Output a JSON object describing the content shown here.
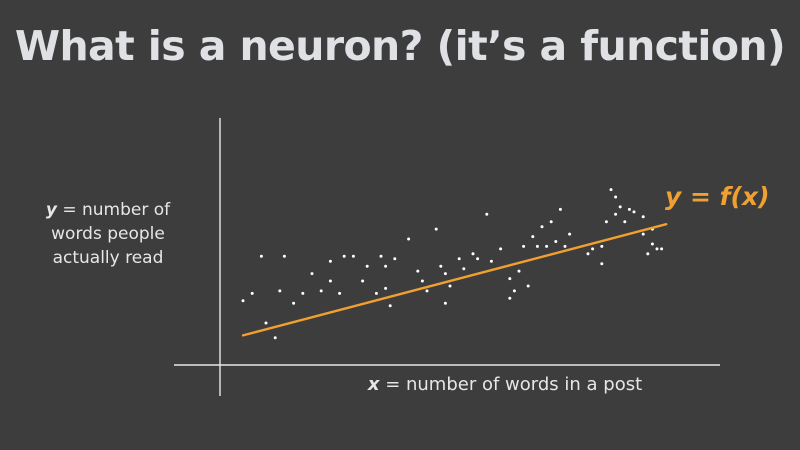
{
  "title": "What is a neuron? (it’s a function)",
  "chart_data": {
    "type": "scatter",
    "title": "",
    "ylabel_var": "y",
    "ylabel_rest": " = number of words people actually read",
    "xlabel_var": "x",
    "xlabel_rest": " = number of words in a post",
    "fit_label": "y = f(x)",
    "fit_line": {
      "type": "linear",
      "x0": 0.05,
      "y0": 0.12,
      "x1": 0.97,
      "y1": 0.57
    },
    "xlim": [
      0,
      1
    ],
    "ylim": [
      0,
      1
    ],
    "colors": {
      "points": "#ffffff",
      "fit_line": "#f0a030",
      "axes": "#e8e8e8"
    },
    "points": [
      [
        0.05,
        0.26
      ],
      [
        0.07,
        0.29
      ],
      [
        0.1,
        0.17
      ],
      [
        0.12,
        0.11
      ],
      [
        0.09,
        0.44
      ],
      [
        0.13,
        0.3
      ],
      [
        0.14,
        0.44
      ],
      [
        0.16,
        0.25
      ],
      [
        0.18,
        0.29
      ],
      [
        0.2,
        0.37
      ],
      [
        0.22,
        0.3
      ],
      [
        0.24,
        0.34
      ],
      [
        0.24,
        0.42
      ],
      [
        0.26,
        0.29
      ],
      [
        0.27,
        0.44
      ],
      [
        0.29,
        0.44
      ],
      [
        0.31,
        0.34
      ],
      [
        0.32,
        0.4
      ],
      [
        0.34,
        0.29
      ],
      [
        0.35,
        0.44
      ],
      [
        0.36,
        0.31
      ],
      [
        0.36,
        0.4
      ],
      [
        0.37,
        0.24
      ],
      [
        0.38,
        0.43
      ],
      [
        0.41,
        0.51
      ],
      [
        0.43,
        0.38
      ],
      [
        0.44,
        0.34
      ],
      [
        0.45,
        0.3
      ],
      [
        0.47,
        0.55
      ],
      [
        0.48,
        0.4
      ],
      [
        0.49,
        0.37
      ],
      [
        0.49,
        0.25
      ],
      [
        0.5,
        0.32
      ],
      [
        0.52,
        0.43
      ],
      [
        0.53,
        0.39
      ],
      [
        0.55,
        0.45
      ],
      [
        0.56,
        0.43
      ],
      [
        0.58,
        0.61
      ],
      [
        0.59,
        0.42
      ],
      [
        0.61,
        0.47
      ],
      [
        0.63,
        0.27
      ],
      [
        0.63,
        0.35
      ],
      [
        0.64,
        0.3
      ],
      [
        0.65,
        0.38
      ],
      [
        0.66,
        0.48
      ],
      [
        0.67,
        0.32
      ],
      [
        0.68,
        0.52
      ],
      [
        0.69,
        0.48
      ],
      [
        0.7,
        0.56
      ],
      [
        0.71,
        0.48
      ],
      [
        0.72,
        0.58
      ],
      [
        0.73,
        0.5
      ],
      [
        0.74,
        0.63
      ],
      [
        0.75,
        0.48
      ],
      [
        0.76,
        0.53
      ],
      [
        0.8,
        0.45
      ],
      [
        0.81,
        0.47
      ],
      [
        0.83,
        0.48
      ],
      [
        0.83,
        0.41
      ],
      [
        0.84,
        0.58
      ],
      [
        0.85,
        0.71
      ],
      [
        0.86,
        0.68
      ],
      [
        0.86,
        0.61
      ],
      [
        0.87,
        0.64
      ],
      [
        0.88,
        0.58
      ],
      [
        0.89,
        0.63
      ],
      [
        0.9,
        0.62
      ],
      [
        0.92,
        0.53
      ],
      [
        0.93,
        0.45
      ],
      [
        0.94,
        0.49
      ],
      [
        0.95,
        0.47
      ],
      [
        0.96,
        0.47
      ],
      [
        0.92,
        0.6
      ],
      [
        0.94,
        0.55
      ]
    ]
  }
}
